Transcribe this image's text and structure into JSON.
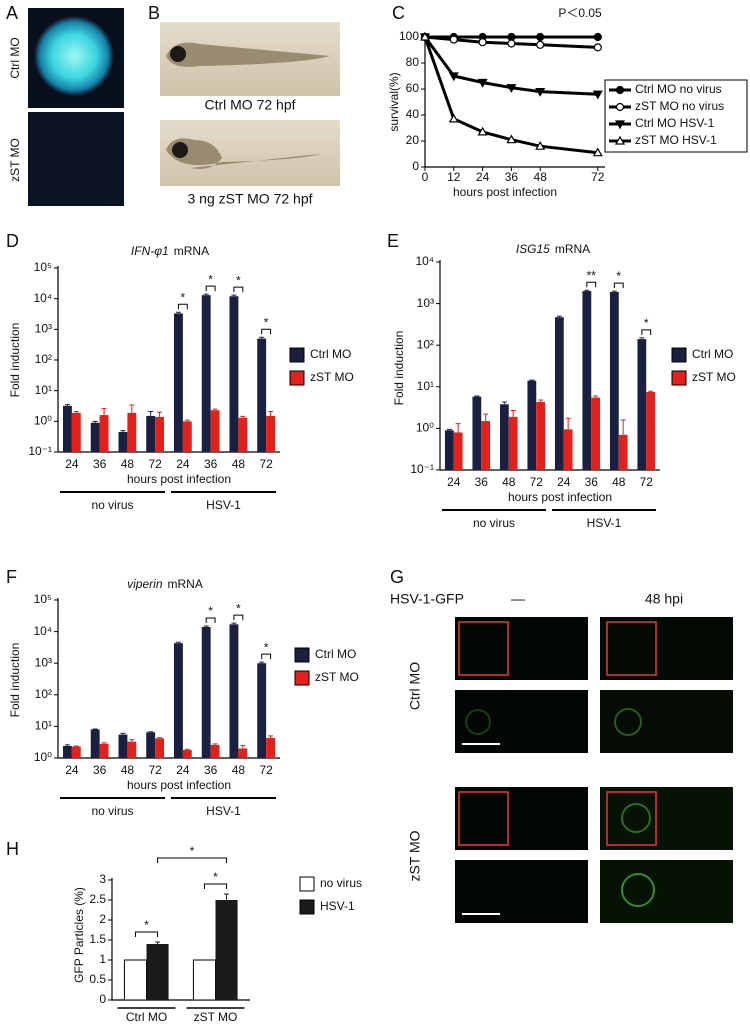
{
  "panel_labels": [
    "A",
    "B",
    "C",
    "D",
    "E",
    "F",
    "G",
    "H"
  ],
  "images": {
    "A": {
      "labels": [
        "Ctrl MO",
        "zST MO"
      ]
    },
    "B": {
      "captions": [
        "Ctrl MO  72 hpf",
        "3 ng zST MO 72 hpf"
      ]
    },
    "G": {
      "header": "HSV-1-GFP",
      "columns": [
        "—",
        "48 hpi"
      ],
      "rows": [
        "Ctrl MO",
        "zST MO"
      ]
    }
  },
  "chart_data": [
    {
      "type": "line",
      "title": "P＜0.05",
      "ylabel": "survival(%)",
      "xlabel": "hours post infection",
      "x": [
        0,
        12,
        24,
        36,
        48,
        72
      ],
      "xlim": [
        0,
        75
      ],
      "xticks": [
        0,
        12,
        24,
        36,
        48,
        72
      ],
      "ylim": [
        0,
        100
      ],
      "yticks": [
        0,
        20,
        40,
        60,
        80,
        100
      ],
      "legend": "right",
      "series": [
        {
          "name": "Ctrl MO no virus",
          "color": "#000000",
          "marker": "circle",
          "values": [
            100,
            100,
            100,
            100,
            100,
            100
          ]
        },
        {
          "name": "zST MO no virus",
          "color": "#000000",
          "marker": "circle-open",
          "values": [
            100,
            98,
            96,
            95,
            94,
            92
          ]
        },
        {
          "name": "Ctrl MO HSV-1",
          "color": "#000000",
          "marker": "triangle-down",
          "values": [
            100,
            70,
            65,
            61,
            58,
            56
          ]
        },
        {
          "name": "zST MO HSV-1",
          "color": "#000000",
          "marker": "triangle-open",
          "values": [
            100,
            37,
            27,
            21,
            16,
            11
          ]
        }
      ]
    },
    {
      "type": "bar",
      "log_y": true,
      "title_parts": [
        "IFN-φ1",
        "mRNA"
      ],
      "ylabel": "Fold induction",
      "xlabel": "hours post infection",
      "categories": [
        "24",
        "36",
        "48",
        "72",
        "24",
        "36",
        "48",
        "72"
      ],
      "groups": [
        "no virus",
        "HSV-1"
      ],
      "ylim": [
        0.1,
        100000
      ],
      "yticks": [
        {
          "value": 0.1,
          "label": "10⁻¹"
        },
        {
          "value": 1,
          "label": "10⁰"
        },
        {
          "value": 10,
          "label": "10¹"
        },
        {
          "value": 100,
          "label": "10²"
        },
        {
          "value": 1000,
          "label": "10³"
        },
        {
          "value": 10000,
          "label": "10⁴"
        },
        {
          "value": 100000,
          "label": "10⁵"
        }
      ],
      "legend": "right",
      "series": [
        {
          "name": "Ctrl MO",
          "color": "#1c2040",
          "values": [
            3.2,
            0.9,
            0.45,
            1.5,
            3300,
            13000,
            12000,
            500
          ],
          "errors": [
            0.3,
            0.1,
            0.05,
            0.6,
            300,
            1000,
            1000,
            50
          ]
        },
        {
          "name": "zST MO",
          "color": "#e3201b",
          "values": [
            1.9,
            1.6,
            1.9,
            1.4,
            1.0,
            2.3,
            1.3,
            1.5
          ],
          "errors": [
            0.2,
            1.0,
            1.5,
            0.6,
            0.1,
            0.2,
            0.15,
            0.6
          ]
        }
      ],
      "significance": [
        null,
        null,
        null,
        null,
        "*",
        "*",
        "*",
        "*"
      ]
    },
    {
      "type": "bar",
      "log_y": true,
      "title_parts": [
        "ISG15",
        "mRNA"
      ],
      "ylabel": "Fold induction",
      "xlabel": "hours post infection",
      "categories": [
        "24",
        "36",
        "48",
        "72",
        "24",
        "36",
        "48",
        "72"
      ],
      "groups": [
        "no virus",
        "HSV-1"
      ],
      "ylim": [
        0.1,
        10000
      ],
      "yticks": [
        {
          "value": 0.1,
          "label": "10⁻¹"
        },
        {
          "value": 1,
          "label": "10⁰"
        },
        {
          "value": 10,
          "label": "10¹"
        },
        {
          "value": 100,
          "label": "10²"
        },
        {
          "value": 1000,
          "label": "10³"
        },
        {
          "value": 10000,
          "label": "10⁴"
        }
      ],
      "legend": "right",
      "series": [
        {
          "name": "Ctrl MO",
          "color": "#1c2040",
          "values": [
            0.9,
            5.8,
            3.8,
            14,
            470,
            2000,
            1900,
            140
          ],
          "errors": [
            0.05,
            0.2,
            0.5,
            0.5,
            30,
            100,
            100,
            10
          ]
        },
        {
          "name": "zST MO",
          "color": "#e3201b",
          "values": [
            0.8,
            1.5,
            1.9,
            4.3,
            0.95,
            5.5,
            0.7,
            7.5
          ],
          "errors": [
            0.5,
            0.7,
            0.8,
            0.5,
            0.8,
            0.5,
            0.9,
            0.3
          ]
        }
      ],
      "significance": [
        null,
        null,
        null,
        null,
        null,
        "**",
        "*",
        "*"
      ]
    },
    {
      "type": "bar",
      "log_y": true,
      "title_parts": [
        "viperin",
        "mRNA"
      ],
      "ylabel": "Fold induction",
      "xlabel": "hours post infection",
      "categories": [
        "24",
        "36",
        "48",
        "72",
        "24",
        "36",
        "48",
        "72"
      ],
      "groups": [
        "no virus",
        "HSV-1"
      ],
      "ylim": [
        1,
        100000
      ],
      "yticks": [
        {
          "value": 1,
          "label": "10⁰"
        },
        {
          "value": 10,
          "label": "10¹"
        },
        {
          "value": 100,
          "label": "10²"
        },
        {
          "value": 1000,
          "label": "10³"
        },
        {
          "value": 10000,
          "label": "10⁴"
        },
        {
          "value": 100000,
          "label": "10⁵"
        }
      ],
      "legend": "right",
      "series": [
        {
          "name": "Ctrl MO",
          "color": "#1c2040",
          "values": [
            2.4,
            8,
            5.5,
            6.5,
            4300,
            14000,
            17000,
            1000
          ],
          "errors": [
            0.2,
            0.3,
            0.5,
            0.3,
            300,
            1000,
            1500,
            80
          ]
        },
        {
          "name": "zST MO",
          "color": "#e3201b",
          "values": [
            2.3,
            2.8,
            3.3,
            4.2,
            1.8,
            2.6,
            2.0,
            4.3
          ],
          "errors": [
            0.1,
            0.2,
            0.5,
            0.2,
            0.1,
            0.2,
            0.5,
            0.7
          ]
        }
      ],
      "significance": [
        null,
        null,
        null,
        null,
        null,
        "*",
        "*",
        "*"
      ]
    },
    {
      "type": "bar",
      "log_y": false,
      "ylabel": "GFP Particles (%)",
      "categories": [
        "Ctrl MO",
        "zST MO"
      ],
      "ylim": [
        0,
        3
      ],
      "yticks": [
        0,
        0.5,
        1,
        1.5,
        2,
        2.5,
        3
      ],
      "legend": "right",
      "series": [
        {
          "name": "no virus",
          "color": "#ffffff",
          "values": [
            1,
            1
          ],
          "errors": [
            0,
            0
          ]
        },
        {
          "name": "HSV-1",
          "color": "#1a1a1a",
          "values": [
            1.4,
            2.5
          ],
          "errors": [
            0.05,
            0.15
          ]
        }
      ],
      "annotations": [
        "*",
        "*",
        "*"
      ]
    }
  ]
}
